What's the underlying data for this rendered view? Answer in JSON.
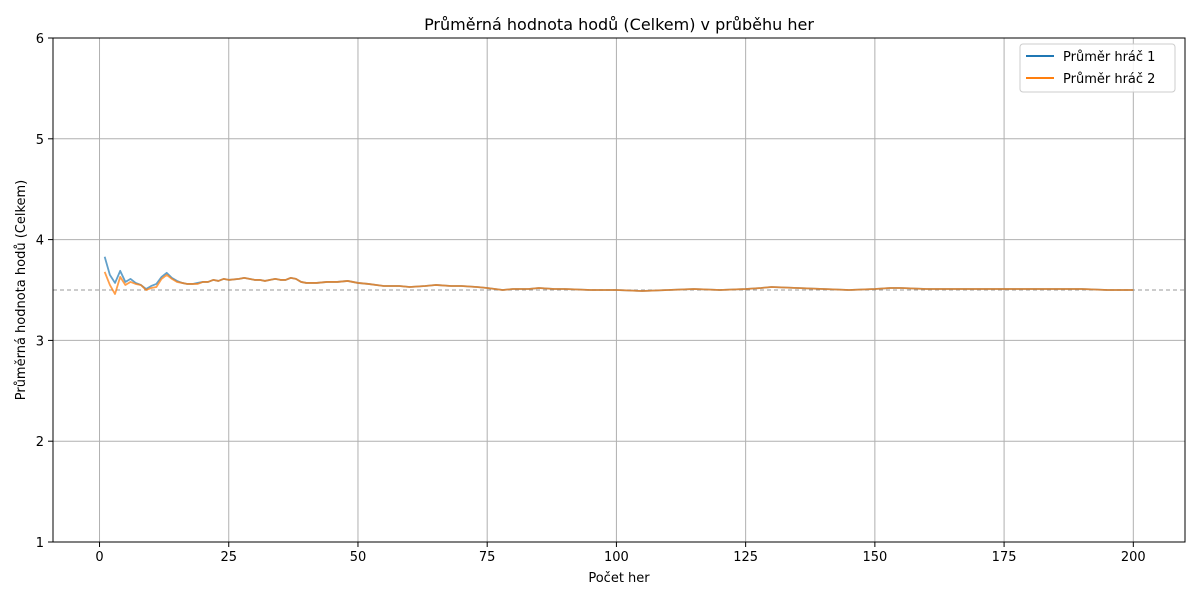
{
  "chart_data": {
    "type": "line",
    "title": "Průměrná hodnota hodů (Celkem) v průběhu her",
    "xlabel": "Počet her",
    "ylabel": "Průměrná hodnota hodů (Celkem)",
    "xlim": [
      -9,
      210
    ],
    "ylim": [
      1,
      6
    ],
    "xticks": [
      0,
      25,
      50,
      75,
      100,
      125,
      150,
      175,
      200
    ],
    "yticks": [
      1,
      2,
      3,
      4,
      5,
      6
    ],
    "grid": true,
    "legend_position": "top-right",
    "reference_line": {
      "y": 3.5,
      "style": "dashed",
      "color": "#999999"
    },
    "series": [
      {
        "name": "Průměr hráč 1",
        "color": "#1f77b4",
        "points": [
          [
            1,
            3.83
          ],
          [
            2,
            3.65
          ],
          [
            3,
            3.57
          ],
          [
            4,
            3.69
          ],
          [
            5,
            3.58
          ],
          [
            6,
            3.61
          ],
          [
            7,
            3.57
          ],
          [
            8,
            3.55
          ],
          [
            9,
            3.51
          ],
          [
            10,
            3.54
          ],
          [
            11,
            3.56
          ],
          [
            12,
            3.63
          ],
          [
            13,
            3.67
          ],
          [
            14,
            3.62
          ],
          [
            15,
            3.59
          ],
          [
            16,
            3.57
          ],
          [
            17,
            3.56
          ],
          [
            18,
            3.56
          ],
          [
            19,
            3.57
          ],
          [
            20,
            3.58
          ],
          [
            21,
            3.58
          ],
          [
            22,
            3.6
          ],
          [
            23,
            3.59
          ],
          [
            24,
            3.61
          ],
          [
            25,
            3.6
          ],
          [
            27,
            3.61
          ],
          [
            28,
            3.62
          ],
          [
            29,
            3.61
          ],
          [
            30,
            3.6
          ],
          [
            31,
            3.6
          ],
          [
            32,
            3.59
          ],
          [
            33,
            3.6
          ],
          [
            34,
            3.61
          ],
          [
            35,
            3.6
          ],
          [
            36,
            3.6
          ],
          [
            37,
            3.62
          ],
          [
            38,
            3.61
          ],
          [
            39,
            3.58
          ],
          [
            40,
            3.57
          ],
          [
            42,
            3.57
          ],
          [
            44,
            3.58
          ],
          [
            46,
            3.58
          ],
          [
            48,
            3.59
          ],
          [
            50,
            3.57
          ],
          [
            52,
            3.56
          ],
          [
            55,
            3.54
          ],
          [
            58,
            3.54
          ],
          [
            60,
            3.53
          ],
          [
            63,
            3.54
          ],
          [
            65,
            3.55
          ],
          [
            68,
            3.54
          ],
          [
            70,
            3.54
          ],
          [
            73,
            3.53
          ],
          [
            75,
            3.52
          ],
          [
            78,
            3.5
          ],
          [
            80,
            3.51
          ],
          [
            83,
            3.51
          ],
          [
            85,
            3.52
          ],
          [
            88,
            3.51
          ],
          [
            90,
            3.51
          ],
          [
            95,
            3.5
          ],
          [
            100,
            3.5
          ],
          [
            105,
            3.49
          ],
          [
            110,
            3.5
          ],
          [
            115,
            3.51
          ],
          [
            120,
            3.5
          ],
          [
            125,
            3.51
          ],
          [
            128,
            3.52
          ],
          [
            130,
            3.53
          ],
          [
            135,
            3.52
          ],
          [
            140,
            3.51
          ],
          [
            145,
            3.5
          ],
          [
            150,
            3.51
          ],
          [
            153,
            3.52
          ],
          [
            155,
            3.52
          ],
          [
            160,
            3.51
          ],
          [
            165,
            3.51
          ],
          [
            170,
            3.51
          ],
          [
            175,
            3.51
          ],
          [
            180,
            3.51
          ],
          [
            185,
            3.51
          ],
          [
            190,
            3.51
          ],
          [
            195,
            3.5
          ],
          [
            200,
            3.5
          ]
        ]
      },
      {
        "name": "Průměr hráč 2",
        "color": "#ff7f0e",
        "points": [
          [
            1,
            3.68
          ],
          [
            2,
            3.55
          ],
          [
            3,
            3.46
          ],
          [
            4,
            3.63
          ],
          [
            5,
            3.55
          ],
          [
            6,
            3.58
          ],
          [
            7,
            3.56
          ],
          [
            8,
            3.55
          ],
          [
            9,
            3.5
          ],
          [
            10,
            3.52
          ],
          [
            11,
            3.53
          ],
          [
            12,
            3.61
          ],
          [
            13,
            3.65
          ],
          [
            14,
            3.61
          ],
          [
            15,
            3.58
          ],
          [
            16,
            3.57
          ],
          [
            17,
            3.56
          ],
          [
            18,
            3.56
          ],
          [
            19,
            3.56
          ],
          [
            20,
            3.58
          ],
          [
            21,
            3.58
          ],
          [
            22,
            3.6
          ],
          [
            23,
            3.59
          ],
          [
            24,
            3.61
          ],
          [
            25,
            3.6
          ],
          [
            27,
            3.61
          ],
          [
            28,
            3.62
          ],
          [
            29,
            3.61
          ],
          [
            30,
            3.6
          ],
          [
            31,
            3.6
          ],
          [
            32,
            3.59
          ],
          [
            33,
            3.6
          ],
          [
            34,
            3.61
          ],
          [
            35,
            3.6
          ],
          [
            36,
            3.6
          ],
          [
            37,
            3.62
          ],
          [
            38,
            3.61
          ],
          [
            39,
            3.58
          ],
          [
            40,
            3.57
          ],
          [
            42,
            3.57
          ],
          [
            44,
            3.58
          ],
          [
            46,
            3.58
          ],
          [
            48,
            3.59
          ],
          [
            50,
            3.57
          ],
          [
            52,
            3.56
          ],
          [
            55,
            3.54
          ],
          [
            58,
            3.54
          ],
          [
            60,
            3.53
          ],
          [
            63,
            3.54
          ],
          [
            65,
            3.55
          ],
          [
            68,
            3.54
          ],
          [
            70,
            3.54
          ],
          [
            73,
            3.53
          ],
          [
            75,
            3.52
          ],
          [
            78,
            3.5
          ],
          [
            80,
            3.51
          ],
          [
            83,
            3.51
          ],
          [
            85,
            3.52
          ],
          [
            88,
            3.51
          ],
          [
            90,
            3.51
          ],
          [
            95,
            3.5
          ],
          [
            100,
            3.5
          ],
          [
            105,
            3.49
          ],
          [
            110,
            3.5
          ],
          [
            115,
            3.51
          ],
          [
            120,
            3.5
          ],
          [
            125,
            3.51
          ],
          [
            128,
            3.52
          ],
          [
            130,
            3.53
          ],
          [
            135,
            3.52
          ],
          [
            140,
            3.51
          ],
          [
            145,
            3.5
          ],
          [
            150,
            3.51
          ],
          [
            153,
            3.52
          ],
          [
            155,
            3.52
          ],
          [
            160,
            3.51
          ],
          [
            165,
            3.51
          ],
          [
            170,
            3.51
          ],
          [
            175,
            3.51
          ],
          [
            180,
            3.51
          ],
          [
            185,
            3.51
          ],
          [
            190,
            3.51
          ],
          [
            195,
            3.5
          ],
          [
            200,
            3.5
          ]
        ]
      }
    ]
  }
}
